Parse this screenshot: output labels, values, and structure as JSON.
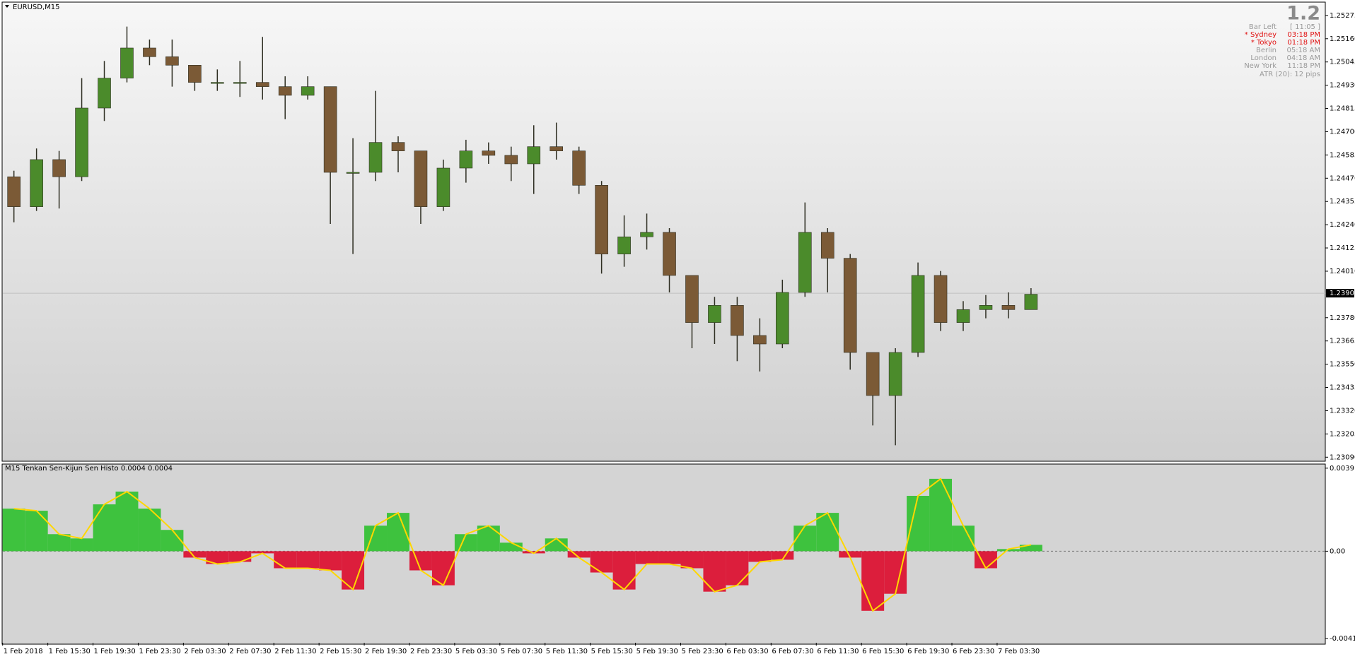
{
  "chart_data": [
    {
      "type": "candlestick",
      "title": "EURUSD,M15",
      "open": [
        1.24477,
        1.24329,
        1.24562,
        1.24477,
        1.24817,
        1.24965,
        1.25114,
        1.25071,
        1.25029,
        1.24944,
        1.24944,
        1.24944,
        1.24923,
        1.2488,
        1.24923,
        1.24499,
        1.24499,
        1.24647,
        1.24605,
        1.24329,
        1.2452,
        1.24605,
        1.24583,
        1.24541,
        1.24626,
        1.24605,
        1.24435,
        1.24095,
        1.2418,
        1.24202,
        1.23989,
        1.23756,
        1.23841,
        1.23692,
        1.2365,
        1.23905,
        1.24202,
        1.24074,
        1.23608,
        1.23395,
        1.23608,
        1.23989,
        1.23756,
        1.2382,
        1.23841,
        1.2382
      ],
      "high": [
        1.24507,
        1.24617,
        1.24605,
        1.24965,
        1.2505,
        1.2522,
        1.25156,
        1.25156,
        1.25029,
        1.25008,
        1.2505,
        1.25169,
        1.24974,
        1.24974,
        1.24923,
        1.24668,
        1.24902,
        1.24677,
        1.24605,
        1.24562,
        1.2466,
        1.24647,
        1.24626,
        1.24732,
        1.24745,
        1.24626,
        1.24456,
        1.24286,
        1.24295,
        1.24223,
        1.23989,
        1.23883,
        1.23883,
        1.23777,
        1.23968,
        1.2435,
        1.24223,
        1.24095,
        1.23608,
        1.23629,
        1.24053,
        1.24011,
        1.23862,
        1.23892,
        1.23905,
        1.23926
      ],
      "low": [
        1.24252,
        1.24308,
        1.2432,
        1.24456,
        1.24753,
        1.24944,
        1.25029,
        1.24923,
        1.24902,
        1.24902,
        1.24872,
        1.24859,
        1.24762,
        1.24859,
        1.24244,
        1.24095,
        1.24456,
        1.24499,
        1.24244,
        1.24308,
        1.24448,
        1.24541,
        1.24456,
        1.24392,
        1.24562,
        1.24392,
        1.23998,
        1.24032,
        1.24117,
        1.23905,
        1.23629,
        1.2365,
        1.23565,
        1.23514,
        1.23629,
        1.23883,
        1.23905,
        1.23523,
        1.23247,
        1.23149,
        1.23586,
        1.23714,
        1.23714,
        1.23777,
        1.23777,
        1.2382
      ],
      "close": [
        1.24329,
        1.24562,
        1.24477,
        1.24817,
        1.24965,
        1.25114,
        1.25071,
        1.25029,
        1.24944,
        1.24944,
        1.24944,
        1.24923,
        1.2488,
        1.24923,
        1.24499,
        1.24499,
        1.24647,
        1.24605,
        1.24329,
        1.2452,
        1.24605,
        1.24583,
        1.24541,
        1.24626,
        1.24605,
        1.24435,
        1.24095,
        1.2418,
        1.24202,
        1.23989,
        1.23756,
        1.23841,
        1.23692,
        1.2365,
        1.23905,
        1.24202,
        1.24074,
        1.23608,
        1.23395,
        1.23608,
        1.23989,
        1.23756,
        1.2382,
        1.23841,
        1.2382,
        1.23896
      ],
      "up_color": "#4b8b2b",
      "down_color": "#7b5a36",
      "wick_color": "#2e2e22",
      "ylim": [
        1.23077,
        1.25334
      ],
      "yticks": [
        1.25275,
        {
          "value": 1.2516,
          "label": "1.25160"
        },
        1.25045,
        {
          "value": 1.2493,
          "label": "1.24930"
        },
        1.24815,
        {
          "value": 1.247,
          "label": "1.24700"
        },
        1.24585,
        {
          "value": 1.2447,
          "label": "1.24470"
        },
        1.24355,
        {
          "value": 1.2424,
          "label": "1.24240"
        },
        1.24125,
        {
          "value": 1.2401,
          "label": "1.24010"
        },
        {
          "value": 1.2378,
          "label": "1.23780"
        },
        1.23665,
        {
          "value": 1.2355,
          "label": "1.23550"
        },
        1.23435,
        {
          "value": 1.2332,
          "label": "1.23320"
        },
        1.23205,
        {
          "value": 1.2309,
          "label": "1.23090"
        }
      ],
      "current_price": {
        "value": 1.23901,
        "label": "1.23901"
      }
    },
    {
      "type": "histogram",
      "title": "M15  Tenkan Sen-Kijun Sen Histo 0.0004 0.0004",
      "categories": [
        "1 Feb 2018",
        null,
        "1 Feb 15:30",
        null,
        "1 Feb 19:30",
        null,
        "1 Feb 23:30",
        null,
        "2 Feb 03:30",
        null,
        "2 Feb 07:30",
        null,
        "2 Feb 11:30",
        null,
        "2 Feb 15:30",
        null,
        "2 Feb 19:30",
        null,
        "2 Feb 23:30",
        null,
        "5 Feb 03:30",
        null,
        "5 Feb 07:30",
        null,
        "5 Feb 11:30",
        null,
        "5 Feb 15:30",
        null,
        "5 Feb 19:30",
        null,
        "5 Feb 23:30",
        null,
        "6 Feb 03:30",
        null,
        "6 Feb 07:30",
        null,
        "6 Feb 11:30",
        null,
        "6 Feb 15:30",
        null,
        "6 Feb 19:30",
        null,
        "6 Feb 23:30",
        null,
        "7 Feb 03:30",
        null
      ],
      "values": [
        0.002,
        0.0019,
        0.0008,
        0.0006,
        0.0022,
        0.0028,
        0.002,
        0.001,
        -0.0003,
        -0.0006,
        -0.0005,
        -0.0001,
        -0.0008,
        -0.0008,
        -0.0009,
        -0.0018,
        0.0012,
        0.0018,
        -0.0009,
        -0.0016,
        0.0008,
        0.0012,
        0.0004,
        -0.0001,
        0.0006,
        -0.0003,
        -0.001,
        -0.0018,
        -0.0006,
        -0.0006,
        -0.0008,
        -0.0019,
        -0.0016,
        -0.0005,
        -0.0004,
        0.0012,
        0.0018,
        -0.0003,
        -0.0028,
        -0.002,
        0.0026,
        0.0034,
        0.0012,
        -0.0008,
        0.0001,
        0.0003
      ],
      "up_color": "#3ec23e",
      "down_color": "#dc1e3c",
      "outline_color": "#ffd700",
      "ylim": [
        -0.0043,
        0.00406
      ],
      "yticks": [
        0.0039,
        {
          "value": 0,
          "label": "0.00"
        },
        -0.0041
      ]
    }
  ],
  "info_panel": {
    "price": "1.2",
    "rows": [
      {
        "label": "Bar Left",
        "value": "[ 11:05 ]",
        "color": "#9a9a9a"
      },
      {
        "label": "* Sydney",
        "value": "03:18 PM",
        "color": "#e01010"
      },
      {
        "label": "* Tokyo",
        "value": "01:18 PM",
        "color": "#e01010"
      },
      {
        "label": "Berlin",
        "value": "05:18 AM",
        "color": "#9a9a9a"
      },
      {
        "label": "London",
        "value": "04:18 AM",
        "color": "#9a9a9a"
      },
      {
        "label": "New York",
        "value": "11:18 PM",
        "color": "#9a9a9a"
      }
    ],
    "atr": "ATR (20): 12 pips"
  }
}
